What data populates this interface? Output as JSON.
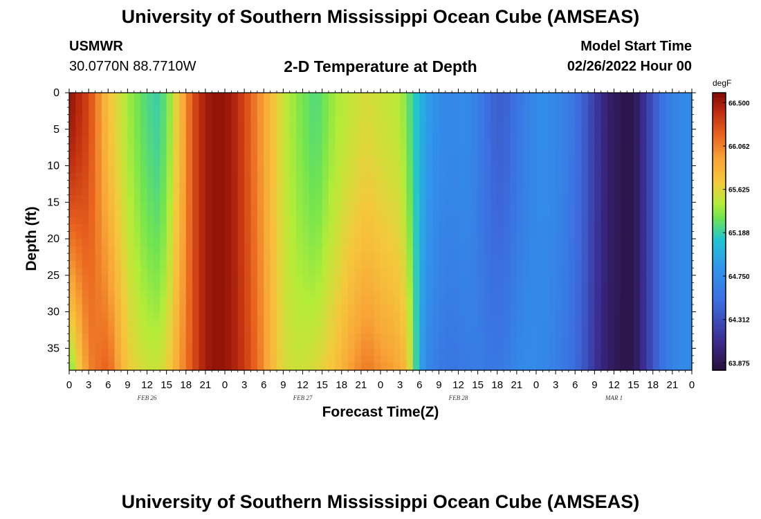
{
  "header": {
    "title": "University of Southern Mississippi Ocean Cube (AMSEAS)",
    "station": "USMWR",
    "coords": "30.0770N  88.7710W",
    "plot_title": "2-D Temperature at Depth",
    "model_start_label": "Model Start Time",
    "model_start_value": "02/26/2022 Hour 00"
  },
  "footer": {
    "title": "University of Southern Mississippi Ocean Cube (AMSEAS)"
  },
  "chart_data": {
    "type": "heatmap",
    "title": "2-D Temperature at Depth",
    "xlabel": "Forecast Time(Z)",
    "ylabel": "Depth (ft)",
    "units": "degF",
    "x_hours": [
      0,
      96
    ],
    "x_tick_step_hours": 3,
    "x_tick_labels": [
      "0",
      "3",
      "6",
      "9",
      "12",
      "15",
      "18",
      "21",
      "0",
      "3",
      "6",
      "9",
      "12",
      "15",
      "18",
      "21",
      "0",
      "3",
      "6",
      "9",
      "12",
      "15",
      "18",
      "21",
      "0",
      "3",
      "6",
      "9",
      "12",
      "15",
      "18",
      "21",
      "0"
    ],
    "date_labels": [
      {
        "text": "FEB 26",
        "hour": 12
      },
      {
        "text": "FEB 27",
        "hour": 36
      },
      {
        "text": "FEB 28",
        "hour": 60
      },
      {
        "text": "MAR 1",
        "hour": 84
      }
    ],
    "ylim": [
      0,
      38
    ],
    "y_ticks": [
      0,
      5,
      10,
      15,
      20,
      25,
      30,
      35
    ],
    "y_tick_labels": [
      "0",
      "5",
      "10",
      "15",
      "20",
      "25",
      "30",
      "35"
    ],
    "colorbar_ticks": [
      66.5,
      66.062,
      65.625,
      65.188,
      64.75,
      64.312,
      63.875
    ],
    "colorbar_tick_labels": [
      "66.500",
      "66.062",
      "65.625",
      "65.188",
      "64.750",
      "64.312",
      "63.875"
    ],
    "vmin": 63.8,
    "vmax": 66.6,
    "surface_profile": [
      [
        0,
        66.55
      ],
      [
        3,
        66.3
      ],
      [
        6,
        65.75
      ],
      [
        9,
        65.45
      ],
      [
        12,
        65.25
      ],
      [
        13.5,
        65.2
      ],
      [
        15,
        65.3
      ],
      [
        17,
        65.75
      ],
      [
        19,
        66.25
      ],
      [
        21,
        66.5
      ],
      [
        23,
        66.55
      ],
      [
        25,
        66.5
      ],
      [
        27,
        66.3
      ],
      [
        29,
        66.05
      ],
      [
        31,
        65.8
      ],
      [
        33,
        65.55
      ],
      [
        35,
        65.4
      ],
      [
        38,
        65.25
      ],
      [
        41,
        65.45
      ],
      [
        44,
        65.55
      ],
      [
        46,
        65.6
      ],
      [
        48,
        65.55
      ],
      [
        51,
        65.5
      ],
      [
        53,
        65.2
      ],
      [
        55,
        64.9
      ],
      [
        57,
        64.75
      ],
      [
        59,
        64.72
      ],
      [
        61,
        64.75
      ],
      [
        63,
        64.65
      ],
      [
        65,
        64.45
      ],
      [
        67,
        64.4
      ],
      [
        69,
        64.55
      ],
      [
        71,
        64.68
      ],
      [
        73,
        64.75
      ],
      [
        75,
        64.72
      ],
      [
        77,
        64.62
      ],
      [
        79,
        64.45
      ],
      [
        81,
        64.2
      ],
      [
        83,
        63.98
      ],
      [
        85,
        63.88
      ],
      [
        86,
        63.86
      ],
      [
        87,
        63.87
      ],
      [
        88,
        64.0
      ],
      [
        90,
        64.35
      ],
      [
        92,
        64.6
      ],
      [
        94,
        64.72
      ],
      [
        96,
        64.75
      ]
    ],
    "bottom_profile": [
      [
        0,
        65.3
      ],
      [
        3,
        66.05
      ],
      [
        6,
        66.2
      ],
      [
        9,
        65.7
      ],
      [
        12,
        65.55
      ],
      [
        13.5,
        65.55
      ],
      [
        15,
        65.62
      ],
      [
        17,
        65.95
      ],
      [
        19,
        66.25
      ],
      [
        21,
        66.5
      ],
      [
        23,
        66.55
      ],
      [
        25,
        66.5
      ],
      [
        27,
        66.35
      ],
      [
        29,
        66.15
      ],
      [
        31,
        65.85
      ],
      [
        33,
        65.6
      ],
      [
        35,
        65.55
      ],
      [
        38,
        65.6
      ],
      [
        41,
        65.75
      ],
      [
        44,
        66.0
      ],
      [
        46,
        66.1
      ],
      [
        48,
        66.0
      ],
      [
        50,
        65.95
      ],
      [
        52,
        65.8
      ],
      [
        53,
        65.4
      ],
      [
        54,
        65.0
      ],
      [
        55,
        64.72
      ],
      [
        57,
        64.6
      ],
      [
        59,
        64.55
      ],
      [
        61,
        64.6
      ],
      [
        63,
        64.62
      ],
      [
        65,
        64.58
      ],
      [
        67,
        64.6
      ],
      [
        69,
        64.72
      ],
      [
        71,
        64.75
      ],
      [
        73,
        64.72
      ],
      [
        75,
        64.65
      ],
      [
        77,
        64.55
      ],
      [
        79,
        64.4
      ],
      [
        81,
        64.15
      ],
      [
        83,
        63.96
      ],
      [
        85,
        63.87
      ],
      [
        86,
        63.85
      ],
      [
        87,
        63.87
      ],
      [
        88,
        64.0
      ],
      [
        90,
        64.35
      ],
      [
        92,
        64.6
      ],
      [
        94,
        64.72
      ],
      [
        96,
        64.75
      ]
    ]
  }
}
